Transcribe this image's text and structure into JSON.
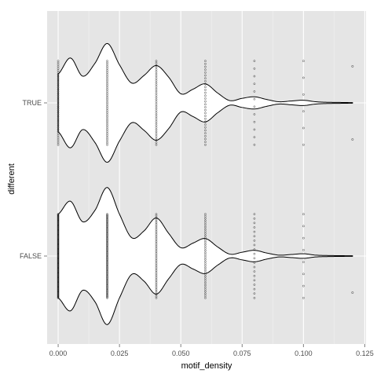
{
  "chart_data": {
    "type": "violin",
    "orientation": "horizontal",
    "xlabel": "motif_density",
    "ylabel": "different",
    "xlim": [
      -0.0045,
      0.1255
    ],
    "x_ticks": [
      0.0,
      0.025,
      0.05,
      0.075,
      0.1,
      0.125
    ],
    "x_tick_labels": [
      "0.000",
      "0.025",
      "0.050",
      "0.075",
      "0.100",
      "0.125"
    ],
    "categories": [
      "TRUE",
      "FALSE"
    ],
    "grid": true,
    "colors": {
      "panel_background": "#e5e5e5",
      "grid_major": "#ffffff",
      "violin_fill": "#ffffff",
      "violin_outline": "#000000",
      "point": "#000000"
    },
    "violins": [
      {
        "category": "TRUE",
        "half_width": [
          {
            "x": 0.0,
            "w": 0.38
          },
          {
            "x": 0.005,
            "w": 0.59
          },
          {
            "x": 0.01,
            "w": 0.35
          },
          {
            "x": 0.015,
            "w": 0.52
          },
          {
            "x": 0.02,
            "w": 0.78
          },
          {
            "x": 0.025,
            "w": 0.5
          },
          {
            "x": 0.03,
            "w": 0.26
          },
          {
            "x": 0.035,
            "w": 0.36
          },
          {
            "x": 0.04,
            "w": 0.49
          },
          {
            "x": 0.045,
            "w": 0.34
          },
          {
            "x": 0.05,
            "w": 0.12
          },
          {
            "x": 0.055,
            "w": 0.18
          },
          {
            "x": 0.06,
            "w": 0.25
          },
          {
            "x": 0.065,
            "w": 0.13
          },
          {
            "x": 0.07,
            "w": 0.03
          },
          {
            "x": 0.075,
            "w": 0.06
          },
          {
            "x": 0.08,
            "w": 0.08
          },
          {
            "x": 0.085,
            "w": 0.045
          },
          {
            "x": 0.09,
            "w": 0.015
          },
          {
            "x": 0.095,
            "w": 0.025
          },
          {
            "x": 0.1,
            "w": 0.035
          },
          {
            "x": 0.105,
            "w": 0.015
          },
          {
            "x": 0.11,
            "w": 0.008
          },
          {
            "x": 0.115,
            "w": 0.006
          },
          {
            "x": 0.12,
            "w": 0.004
          }
        ],
        "point_clusters": [
          {
            "x": 0.0,
            "span": 0.55,
            "n": 45
          },
          {
            "x": 0.02,
            "span": 0.55,
            "n": 45
          },
          {
            "x": 0.04,
            "span": 0.55,
            "n": 40
          },
          {
            "x": 0.06,
            "span": 0.55,
            "n": 30
          },
          {
            "x": 0.08,
            "span": 0.55,
            "n": 12
          },
          {
            "x": 0.1,
            "span": 0.55,
            "n": 6
          }
        ],
        "points": [
          {
            "x": 0.12,
            "y": 0.48
          },
          {
            "x": 0.12,
            "y": -0.48
          }
        ]
      },
      {
        "category": "FALSE",
        "half_width": [
          {
            "x": 0.0,
            "w": 0.55
          },
          {
            "x": 0.005,
            "w": 0.72
          },
          {
            "x": 0.01,
            "w": 0.45
          },
          {
            "x": 0.015,
            "w": 0.6
          },
          {
            "x": 0.02,
            "w": 0.9
          },
          {
            "x": 0.025,
            "w": 0.55
          },
          {
            "x": 0.03,
            "w": 0.24
          },
          {
            "x": 0.035,
            "w": 0.33
          },
          {
            "x": 0.04,
            "w": 0.5
          },
          {
            "x": 0.045,
            "w": 0.3
          },
          {
            "x": 0.05,
            "w": 0.11
          },
          {
            "x": 0.055,
            "w": 0.17
          },
          {
            "x": 0.06,
            "w": 0.23
          },
          {
            "x": 0.065,
            "w": 0.12
          },
          {
            "x": 0.07,
            "w": 0.025
          },
          {
            "x": 0.075,
            "w": 0.05
          },
          {
            "x": 0.08,
            "w": 0.075
          },
          {
            "x": 0.085,
            "w": 0.04
          },
          {
            "x": 0.09,
            "w": 0.012
          },
          {
            "x": 0.095,
            "w": 0.02
          },
          {
            "x": 0.1,
            "w": 0.03
          },
          {
            "x": 0.105,
            "w": 0.012
          },
          {
            "x": 0.11,
            "w": 0.007
          },
          {
            "x": 0.115,
            "w": 0.005
          },
          {
            "x": 0.12,
            "w": 0.004
          }
        ],
        "point_clusters": [
          {
            "x": 0.0,
            "span": 0.55,
            "n": 90
          },
          {
            "x": 0.02,
            "span": 0.55,
            "n": 90
          },
          {
            "x": 0.04,
            "span": 0.55,
            "n": 50
          },
          {
            "x": 0.06,
            "span": 0.55,
            "n": 40
          },
          {
            "x": 0.08,
            "span": 0.55,
            "n": 20
          },
          {
            "x": 0.1,
            "span": 0.55,
            "n": 8
          }
        ],
        "points": [
          {
            "x": 0.12,
            "y": -0.48
          }
        ]
      }
    ]
  }
}
